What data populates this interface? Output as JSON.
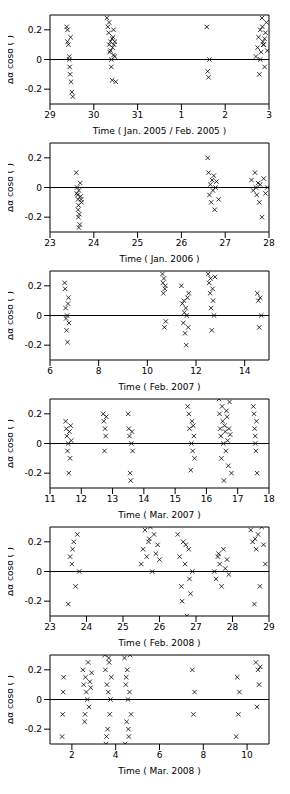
{
  "chart_data": [
    {
      "type": "scatter",
      "x_label": "Time ( Jan. 2005 / Feb. 2005 )",
      "y_label": "Δα cosδ (″)",
      "color": "#000000",
      "marker": "x",
      "reference_line": 0,
      "xlim": [
        29,
        34
      ],
      "xticks": [
        29,
        30,
        31,
        {
          "value": 32,
          "label": "1"
        },
        {
          "value": 33,
          "label": "2"
        },
        {
          "value": 34,
          "label": "3"
        }
      ],
      "ylim": [
        -0.3,
        0.3
      ],
      "yticks": [
        -0.2,
        0,
        0.2
      ],
      "x": [
        29.38,
        29.4,
        29.42,
        29.44,
        29.45,
        29.46,
        29.48,
        29.5,
        29.52,
        29.4,
        29.44,
        29.47,
        30.3,
        30.32,
        30.34,
        30.35,
        30.36,
        30.38,
        30.4,
        30.4,
        30.42,
        30.43,
        30.44,
        30.45,
        30.46,
        30.48,
        30.5,
        30.35,
        30.38,
        30.42,
        30.45,
        30.48,
        32.58,
        32.6,
        32.62,
        32.64,
        33.7,
        33.74,
        33.76,
        33.78,
        33.8,
        33.82,
        33.84,
        33.86,
        33.88,
        33.9,
        33.92,
        33.94,
        33.96,
        33.8,
        33.85,
        33.9,
        33.87
      ],
      "values": [
        0.22,
        0.2,
        0.1,
        0.02,
        -0.05,
        -0.1,
        -0.15,
        -0.22,
        -0.25,
        0.12,
        0.0,
        0.15,
        0.28,
        0.22,
        0.18,
        0.1,
        0.05,
        0.12,
        0.0,
        -0.05,
        -0.14,
        0.08,
        0.15,
        0.2,
        0.1,
        0.02,
        -0.15,
        0.25,
        0.06,
        0.14,
        0.03,
        0.12,
        0.22,
        -0.08,
        -0.12,
        0.0,
        0.02,
        0.08,
        0.15,
        -0.1,
        0.2,
        0.05,
        0.28,
        0.12,
        0.1,
        -0.05,
        0.18,
        0.25,
        0.06,
        0.0,
        0.22,
        0.14,
        0.1
      ]
    },
    {
      "type": "scatter",
      "x_label": "Time ( Jan. 2006 )",
      "y_label": "Δα cosδ (″)",
      "color": "#000000",
      "marker": "x",
      "reference_line": 0,
      "xlim": [
        23,
        28
      ],
      "xticks": [
        23,
        24,
        25,
        26,
        27,
        28
      ],
      "ylim": [
        -0.3,
        0.3
      ],
      "yticks": [
        -0.2,
        0,
        0.2
      ],
      "x": [
        23.6,
        23.62,
        23.63,
        23.64,
        23.65,
        23.66,
        23.67,
        23.68,
        23.7,
        23.72,
        23.61,
        23.64,
        23.66,
        23.69,
        23.71,
        23.65,
        26.6,
        26.62,
        26.64,
        26.66,
        26.68,
        26.7,
        26.72,
        26.74,
        26.76,
        26.78,
        26.8,
        26.85,
        27.6,
        27.64,
        27.68,
        27.7,
        27.72,
        27.75,
        27.78,
        27.8,
        27.84,
        27.88,
        27.92,
        27.96
      ],
      "values": [
        0.1,
        0.0,
        -0.05,
        -0.08,
        -0.12,
        -0.02,
        -0.18,
        -0.25,
        -0.06,
        -0.1,
        -0.04,
        -0.15,
        -0.27,
        0.03,
        -0.08,
        -0.2,
        0.2,
        0.1,
        -0.05,
        0.02,
        -0.1,
        0.05,
        -0.02,
        0.08,
        -0.15,
        0.0,
        0.04,
        -0.08,
        0.05,
        -0.02,
        0.1,
        0.0,
        -0.05,
        0.03,
        -0.1,
        0.02,
        -0.2,
        0.06,
        -0.04,
        0.0
      ]
    },
    {
      "type": "scatter",
      "x_label": "Time ( Feb. 2007 )",
      "y_label": "Δα cosδ (″)",
      "color": "#000000",
      "marker": "x",
      "reference_line": 0,
      "xlim": [
        6,
        15
      ],
      "xticks": [
        6,
        8,
        10,
        12,
        14
      ],
      "ylim": [
        -0.3,
        0.3
      ],
      "yticks": [
        -0.2,
        0,
        0.2
      ],
      "x": [
        6.6,
        6.62,
        6.64,
        6.66,
        6.68,
        6.7,
        6.72,
        6.74,
        6.76,
        6.78,
        10.62,
        10.64,
        10.66,
        10.68,
        10.7,
        10.72,
        10.74,
        10.76,
        11.4,
        11.44,
        11.48,
        11.5,
        11.52,
        11.55,
        11.58,
        11.6,
        11.62,
        11.65,
        11.68,
        11.7,
        12.5,
        12.54,
        12.58,
        12.6,
        12.62,
        12.65,
        12.68,
        12.7,
        12.74,
        12.78,
        14.52,
        14.56,
        14.6,
        14.64,
        14.68
      ],
      "values": [
        0.22,
        0.18,
        0.05,
        -0.02,
        -0.1,
        0.0,
        -0.18,
        0.08,
        0.12,
        -0.05,
        0.28,
        0.22,
        0.15,
        0.25,
        -0.08,
        0.18,
        0.2,
        -0.04,
        0.2,
        0.08,
        -0.05,
        0.1,
        0.02,
        -0.12,
        0.05,
        -0.2,
        0.0,
        0.12,
        -0.08,
        0.15,
        0.28,
        0.22,
        0.15,
        0.25,
        0.05,
        -0.1,
        0.18,
        0.1,
        0.0,
        0.26,
        0.15,
        0.1,
        -0.08,
        0.12,
        0.0
      ]
    },
    {
      "type": "scatter",
      "x_label": "Time ( Mar. 2007 )",
      "y_label": "Δα cosδ (″)",
      "color": "#000000",
      "marker": "x",
      "reference_line": 0,
      "xlim": [
        11,
        18
      ],
      "xticks": [
        11,
        12,
        13,
        14,
        15,
        16,
        17,
        18
      ],
      "ylim": [
        -0.3,
        0.3
      ],
      "yticks": [
        -0.2,
        0,
        0.2
      ],
      "x": [
        11.5,
        11.52,
        11.54,
        11.56,
        11.58,
        11.6,
        11.62,
        11.64,
        11.66,
        11.68,
        12.7,
        12.72,
        12.74,
        12.76,
        12.78,
        12.8,
        13.5,
        13.52,
        13.54,
        13.56,
        13.58,
        13.6,
        13.62,
        13.64,
        15.4,
        15.44,
        15.46,
        15.5,
        15.52,
        15.54,
        15.56,
        15.58,
        15.6,
        15.62,
        16.4,
        16.42,
        16.44,
        16.46,
        16.48,
        16.5,
        16.52,
        16.54,
        16.56,
        16.58,
        16.6,
        16.62,
        16.64,
        16.66,
        16.68,
        16.7,
        16.72,
        16.74,
        16.76,
        16.8,
        17.5,
        17.52,
        17.54,
        17.56,
        17.58,
        17.6,
        17.62,
        17.56
      ],
      "values": [
        0.15,
        0.1,
        0.05,
        -0.05,
        0.0,
        -0.2,
        0.08,
        -0.1,
        0.12,
        0.02,
        0.2,
        0.15,
        -0.05,
        0.1,
        0.05,
        0.18,
        0.2,
        0.1,
        0.05,
        -0.2,
        -0.25,
        0.0,
        0.08,
        -0.05,
        0.25,
        0.2,
        0.1,
        -0.18,
        0.0,
        0.15,
        -0.05,
        0.12,
        0.05,
        -0.1,
        0.3,
        0.2,
        0.1,
        0.05,
        -0.1,
        0.25,
        0.15,
        0.0,
        -0.25,
        0.12,
        0.08,
        -0.05,
        0.22,
        0.18,
        0.02,
        -0.15,
        0.1,
        0.28,
        0.06,
        -0.2,
        0.25,
        0.2,
        0.1,
        0.05,
        -0.05,
        0.15,
        -0.2,
        0.0
      ]
    },
    {
      "type": "scatter",
      "x_label": "Time ( Feb. 2008 )",
      "y_label": "Δα cosδ (″)",
      "color": "#000000",
      "marker": "x",
      "reference_line": 0,
      "xlim": [
        23,
        29
      ],
      "xticks": [
        23,
        24,
        25,
        26,
        27,
        28,
        29
      ],
      "ylim": [
        -0.3,
        0.3
      ],
      "yticks": [
        -0.2,
        0,
        0.2
      ],
      "x": [
        23.5,
        23.55,
        23.6,
        23.65,
        23.7,
        23.75,
        23.8,
        23.62,
        25.5,
        25.55,
        25.6,
        25.65,
        25.7,
        25.75,
        25.8,
        25.85,
        25.9,
        25.95,
        26.0,
        25.72,
        26.5,
        26.55,
        26.6,
        26.65,
        26.7,
        26.75,
        26.8,
        26.85,
        26.9,
        26.62,
        26.72,
        26.82,
        27.5,
        27.55,
        27.6,
        27.65,
        27.7,
        27.75,
        27.8,
        27.85,
        27.9,
        27.62,
        28.5,
        28.55,
        28.6,
        28.65,
        28.7,
        28.75,
        28.8,
        28.85,
        28.9,
        28.62
      ],
      "values": [
        -0.22,
        0.1,
        0.05,
        0.2,
        -0.1,
        0.25,
        0.0,
        0.15,
        0.05,
        0.15,
        0.28,
        0.1,
        0.2,
        0.3,
        0.0,
        0.25,
        0.12,
        0.18,
        0.08,
        0.22,
        0.25,
        0.1,
        -0.1,
        0.2,
        0.05,
        -0.3,
        0.15,
        -0.15,
        0.0,
        -0.2,
        0.18,
        -0.05,
        0.0,
        -0.05,
        0.1,
        0.05,
        -0.1,
        0.15,
        0.02,
        0.08,
        -0.02,
        0.12,
        0.28,
        0.2,
        -0.22,
        0.15,
        0.25,
        -0.1,
        0.3,
        0.18,
        0.05,
        0.22
      ]
    },
    {
      "type": "scatter",
      "x_label": "Time ( Mar. 2008 )",
      "y_label": "Δα cosδ (″)",
      "color": "#000000",
      "marker": "x",
      "reference_line": 0,
      "xlim": [
        1,
        11
      ],
      "xticks": [
        2,
        4,
        6,
        8,
        10
      ],
      "ylim": [
        -0.3,
        0.3
      ],
      "yticks": [
        -0.2,
        0,
        0.2
      ],
      "x": [
        1.55,
        1.58,
        1.6,
        1.62,
        2.5,
        2.54,
        2.58,
        2.62,
        2.66,
        2.7,
        2.74,
        2.78,
        2.82,
        2.86,
        2.9,
        2.6,
        3.5,
        3.53,
        3.56,
        3.6,
        3.63,
        3.66,
        3.7,
        3.73,
        3.76,
        3.8,
        3.58,
        3.68,
        4.4,
        4.43,
        4.46,
        4.5,
        4.53,
        4.56,
        4.6,
        4.63,
        4.66,
        4.7,
        4.48,
        4.58,
        7.5,
        7.55,
        7.6,
        9.5,
        9.55,
        9.6,
        9.65,
        10.4,
        10.45,
        10.5,
        10.55,
        10.6
      ],
      "values": [
        -0.25,
        -0.1,
        0.05,
        0.15,
        0.2,
        0.1,
        -0.15,
        0.15,
        0.05,
        0.0,
        0.25,
        -0.05,
        0.12,
        0.08,
        0.18,
        -0.1,
        0.3,
        0.2,
        -0.3,
        0.1,
        -0.2,
        0.05,
        0.25,
        -0.1,
        0.0,
        0.15,
        -0.25,
        0.28,
        0.28,
        -0.3,
        0.1,
        -0.15,
        0.2,
        0.0,
        -0.25,
        0.05,
        0.3,
        -0.1,
        0.15,
        -0.2,
        0.2,
        -0.1,
        0.05,
        -0.25,
        0.15,
        -0.1,
        0.05,
        0.25,
        -0.05,
        0.2,
        0.1,
        0.22
      ]
    }
  ]
}
